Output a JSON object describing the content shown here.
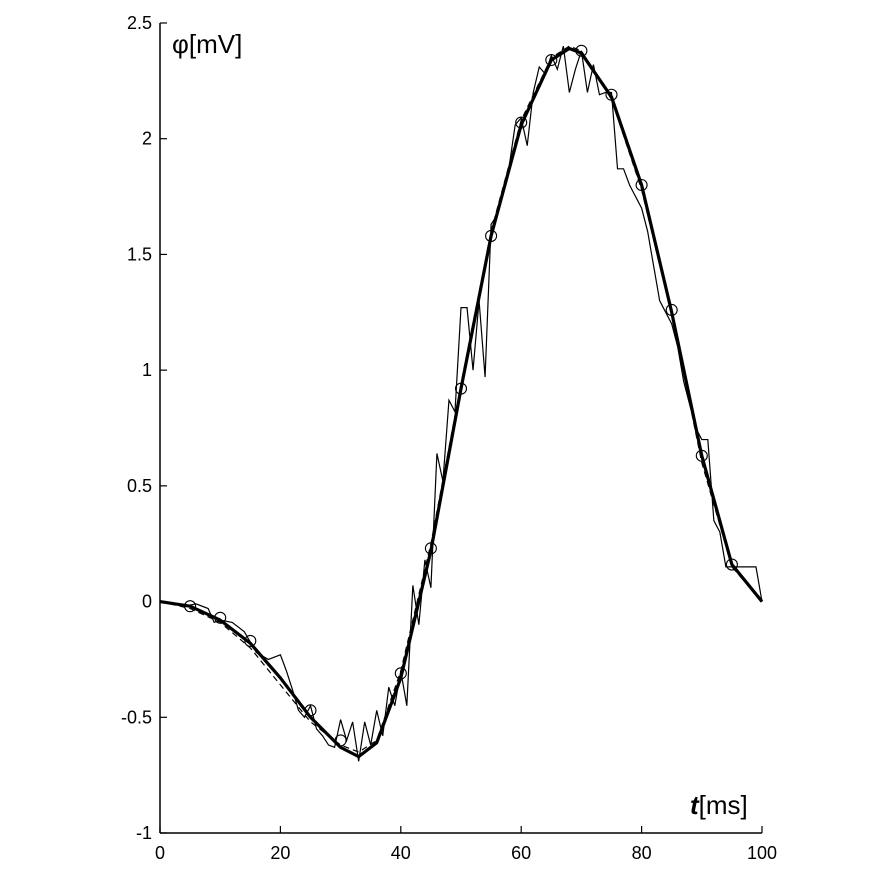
{
  "chart_data": {
    "type": "line",
    "title": "",
    "xlabel_var": "t",
    "xlabel_unit": "[ms]",
    "ylabel_var": "φ",
    "ylabel_unit": "[mV]",
    "xlim": [
      0,
      100
    ],
    "ylim": [
      -1,
      2.5
    ],
    "xticks": [
      0,
      20,
      40,
      60,
      80,
      100
    ],
    "yticks": [
      -1,
      -0.5,
      0,
      0.5,
      1,
      1.5,
      2,
      2.5
    ],
    "xtick_labels": [
      "0",
      "20",
      "40",
      "60",
      "80",
      "100"
    ],
    "ytick_labels": [
      "-1",
      "-0.5",
      "0",
      "0.5",
      "1",
      "1.5",
      "2",
      "2.5"
    ],
    "grid": false,
    "series": [
      {
        "style": "thick-solid",
        "x": [
          0,
          5,
          10,
          15,
          20,
          25,
          30,
          33,
          36,
          40,
          45,
          50,
          55,
          60,
          65,
          68,
          70,
          75,
          80,
          85,
          90,
          95,
          100
        ],
        "y": [
          0,
          -0.02,
          -0.08,
          -0.18,
          -0.33,
          -0.5,
          -0.63,
          -0.67,
          -0.61,
          -0.33,
          0.22,
          0.92,
          1.58,
          2.06,
          2.34,
          2.39,
          2.37,
          2.18,
          1.8,
          1.25,
          0.63,
          0.16,
          0
        ]
      },
      {
        "style": "thin-jagged",
        "x": [
          0,
          2,
          4,
          6,
          8,
          9,
          10,
          12,
          14,
          16,
          18,
          20,
          21,
          22,
          23,
          24,
          25,
          26,
          27,
          28,
          29,
          30,
          31,
          32,
          33,
          34,
          35,
          36,
          37,
          38,
          39,
          40,
          41,
          42,
          43,
          44,
          45,
          46,
          47,
          48,
          49,
          50,
          51,
          52,
          53,
          54,
          55,
          56,
          57,
          58,
          59,
          60,
          61,
          62,
          63,
          64,
          65,
          66,
          67,
          68,
          69,
          70,
          71,
          72,
          73,
          74,
          75,
          76,
          77,
          78,
          79,
          80,
          81,
          82,
          83,
          84,
          85,
          86,
          87,
          88,
          89,
          90,
          91,
          92,
          93,
          94,
          95,
          96,
          97,
          98,
          99,
          100
        ],
        "y": [
          0,
          -0.01,
          -0.02,
          -0.01,
          -0.03,
          -0.09,
          -0.08,
          -0.09,
          -0.13,
          -0.22,
          -0.25,
          -0.23,
          -0.3,
          -0.38,
          -0.47,
          -0.5,
          -0.45,
          -0.55,
          -0.58,
          -0.62,
          -0.63,
          -0.51,
          -0.6,
          -0.52,
          -0.69,
          -0.52,
          -0.62,
          -0.47,
          -0.58,
          -0.37,
          -0.45,
          -0.3,
          -0.45,
          0.07,
          -0.1,
          0.18,
          0.06,
          0.64,
          0.52,
          0.87,
          0.82,
          1.27,
          1.27,
          1.0,
          1.3,
          0.97,
          1.63,
          1.67,
          1.78,
          1.88,
          2.06,
          2.09,
          1.97,
          2.2,
          2.31,
          2.28,
          2.36,
          2.3,
          2.4,
          2.2,
          2.3,
          2.38,
          2.2,
          2.32,
          2.19,
          2.2,
          2.2,
          1.87,
          1.87,
          1.8,
          1.75,
          1.7,
          1.6,
          1.45,
          1.3,
          1.25,
          1.2,
          1.1,
          0.95,
          0.85,
          0.75,
          0.7,
          0.7,
          0.35,
          0.3,
          0.15,
          0.15,
          0.15,
          0.15,
          0.15,
          0.15,
          0.0
        ]
      },
      {
        "style": "thin-dashed",
        "x": [
          0,
          5,
          10,
          15,
          20,
          25,
          30,
          33,
          36,
          40,
          45,
          50,
          55,
          60,
          65,
          68,
          70,
          75,
          80,
          85,
          90,
          95,
          100
        ],
        "y": [
          0,
          -0.03,
          -0.09,
          -0.2,
          -0.36,
          -0.52,
          -0.62,
          -0.65,
          -0.6,
          -0.3,
          0.25,
          0.94,
          1.6,
          2.08,
          2.35,
          2.4,
          2.38,
          2.17,
          1.78,
          1.24,
          0.6,
          0.15,
          0
        ]
      },
      {
        "style": "circles",
        "x": [
          5,
          10,
          15,
          25,
          30,
          40,
          45,
          50,
          55,
          60,
          65,
          70,
          75,
          80,
          85,
          90,
          95
        ],
        "y": [
          -0.02,
          -0.07,
          -0.17,
          -0.47,
          -0.6,
          -0.31,
          0.23,
          0.92,
          1.58,
          2.07,
          2.34,
          2.38,
          2.19,
          1.8,
          1.26,
          0.63,
          0.16
        ]
      }
    ]
  }
}
